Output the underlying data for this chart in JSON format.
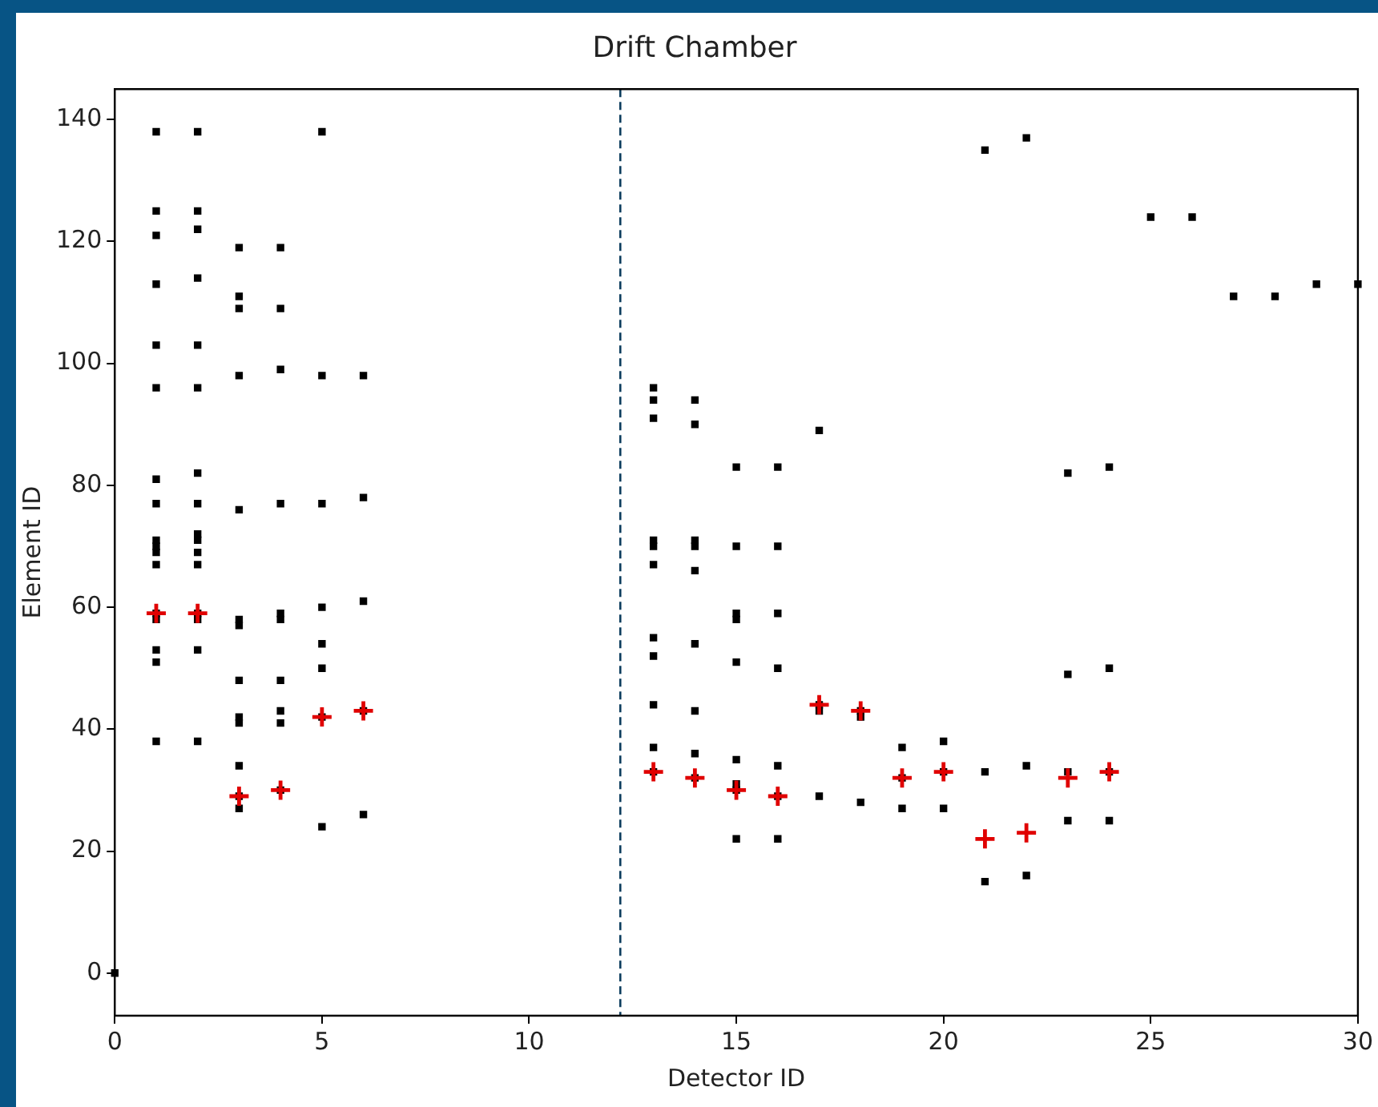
{
  "chart_data": {
    "type": "scatter",
    "title": "Drift Chamber",
    "xlabel": "Detector ID",
    "ylabel": "Element ID",
    "xlim": [
      0,
      30
    ],
    "xticks": [
      0,
      5,
      10,
      15,
      20,
      25,
      30
    ],
    "ylim": [
      -7,
      145
    ],
    "yticks": [
      0,
      20,
      40,
      60,
      80,
      100,
      120,
      140
    ],
    "grid": false,
    "legend": false,
    "ref_lines": [
      {
        "axis": "x",
        "value": 12.2,
        "color": "#0b3c5d",
        "line_style": "dashed"
      }
    ],
    "series": [
      {
        "color": "#000000",
        "marker": "square",
        "x": [
          0,
          1,
          1,
          1,
          1,
          1,
          1,
          1,
          1,
          1,
          1,
          1,
          1,
          1,
          1,
          1,
          1,
          1,
          2,
          2,
          2,
          2,
          2,
          2,
          2,
          2,
          2,
          2,
          2,
          2,
          2,
          2,
          2,
          2,
          3,
          3,
          3,
          3,
          3,
          3,
          3,
          3,
          3,
          3,
          3,
          3,
          3,
          4,
          4,
          4,
          4,
          4,
          4,
          4,
          4,
          4,
          4,
          5,
          5,
          5,
          5,
          5,
          5,
          5,
          5,
          6,
          6,
          6,
          6,
          6,
          13,
          13,
          13,
          13,
          13,
          13,
          13,
          13,
          13,
          13,
          13,
          14,
          14,
          14,
          14,
          14,
          14,
          14,
          14,
          14,
          15,
          15,
          15,
          15,
          15,
          15,
          15,
          15,
          15,
          16,
          16,
          16,
          16,
          16,
          16,
          16,
          17,
          17,
          17,
          17,
          18,
          18,
          18,
          19,
          19,
          19,
          20,
          20,
          20,
          21,
          21,
          21,
          22,
          22,
          22,
          23,
          23,
          23,
          23,
          24,
          24,
          24,
          24,
          25,
          26,
          27,
          28,
          29,
          30
        ],
        "values": [
          0,
          138,
          125,
          121,
          113,
          103,
          96,
          81,
          77,
          71,
          70,
          69,
          67,
          59,
          58,
          53,
          51,
          38,
          138,
          125,
          122,
          114,
          103,
          96,
          82,
          77,
          72,
          71,
          69,
          67,
          59,
          58,
          53,
          38,
          119,
          111,
          109,
          98,
          76,
          58,
          57,
          48,
          42,
          41,
          34,
          29,
          27,
          119,
          109,
          99,
          77,
          59,
          58,
          48,
          43,
          41,
          30,
          138,
          98,
          77,
          60,
          54,
          50,
          42,
          24,
          98,
          78,
          61,
          43,
          26,
          96,
          94,
          91,
          71,
          70,
          67,
          55,
          52,
          44,
          37,
          33,
          94,
          90,
          71,
          70,
          66,
          54,
          43,
          36,
          32,
          83,
          70,
          59,
          58,
          51,
          35,
          31,
          30,
          22,
          83,
          70,
          59,
          50,
          34,
          29,
          22,
          89,
          44,
          43,
          29,
          43,
          42,
          28,
          37,
          32,
          27,
          38,
          33,
          27,
          135,
          33,
          15,
          137,
          34,
          16,
          82,
          49,
          33,
          25,
          83,
          50,
          33,
          25,
          124,
          124,
          111,
          111,
          113,
          113
        ]
      },
      {
        "color": "#e00000",
        "marker": "cross",
        "x": [
          1,
          2,
          3,
          4,
          5,
          6,
          13,
          14,
          15,
          16,
          17,
          18,
          19,
          20,
          21,
          22,
          23,
          24
        ],
        "values": [
          59,
          59,
          29,
          30,
          42,
          43,
          33,
          32,
          30,
          29,
          44,
          43,
          32,
          33,
          22,
          23,
          32,
          33
        ]
      }
    ]
  }
}
